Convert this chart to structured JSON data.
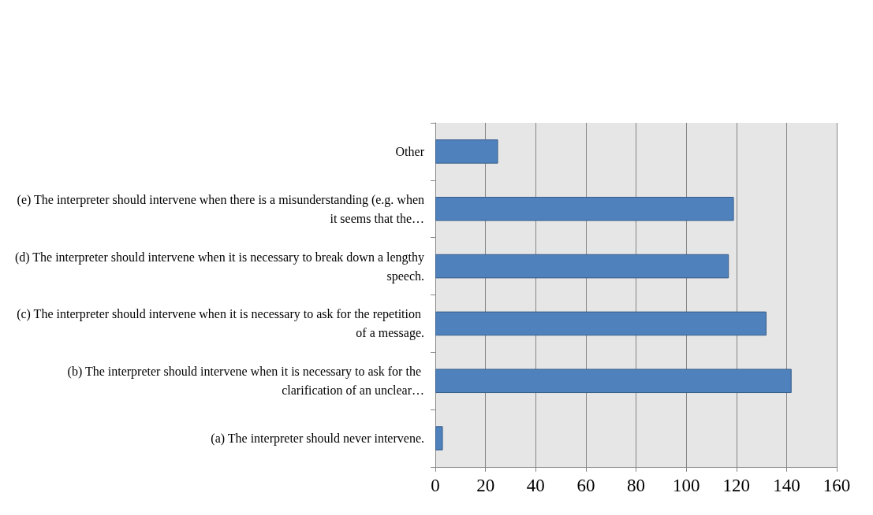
{
  "chart_data": {
    "type": "bar",
    "orientation": "horizontal",
    "categories": [
      "Other",
      "(e) The interpreter should intervene when there is a misunderstanding (e.g. when it seems that the…",
      "(d) The interpreter should intervene when it is necessary to break down a lengthy speech.",
      "(c) The interpreter should intervene when it is necessary to ask for the repetition of a message.",
      "(b) The interpreter should intervene when it is necessary to ask for the clarification of an unclear…",
      "(a) The interpreter should never intervene."
    ],
    "values": [
      25,
      119,
      117,
      132,
      142,
      3
    ],
    "color": "#4f81bd",
    "xlim": [
      0,
      160
    ],
    "xticks": [
      0,
      20,
      40,
      60,
      80,
      100,
      120,
      140,
      160
    ],
    "grid": "x"
  }
}
